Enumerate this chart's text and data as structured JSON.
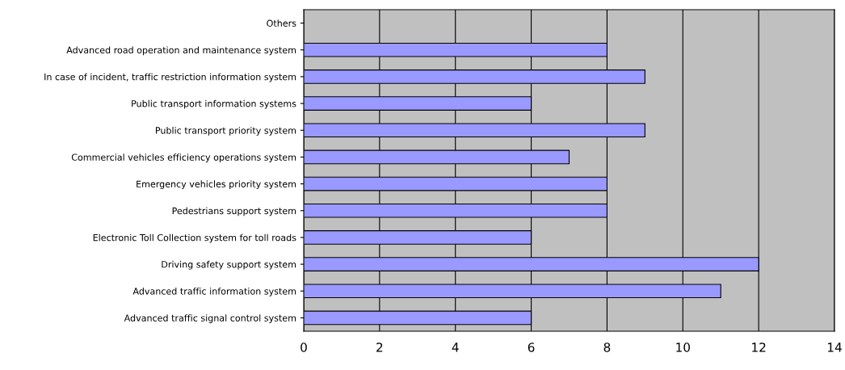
{
  "chart_data": {
    "type": "bar",
    "orientation": "horizontal",
    "categories": [
      "Others",
      "Advanced road operation and maintenance system",
      "In case of incident, traffic restriction information system",
      "Public transport information systems",
      "Public transport priority system",
      "Commercial vehicles efficiency operations system",
      "Emergency vehicles priority system",
      "Pedestrians support system",
      "Electronic Toll Collection system for toll roads",
      "Driving safety support system",
      "Advanced traffic information system",
      "Advanced traffic signal control system"
    ],
    "values": [
      null,
      8,
      9,
      6,
      9,
      7,
      8,
      8,
      6,
      12,
      11,
      6
    ],
    "color": "#9999ff",
    "xlim": [
      0,
      14
    ],
    "xticks": [
      0,
      2,
      4,
      6,
      8,
      10,
      12,
      14
    ],
    "grid": "x",
    "legend": false
  }
}
